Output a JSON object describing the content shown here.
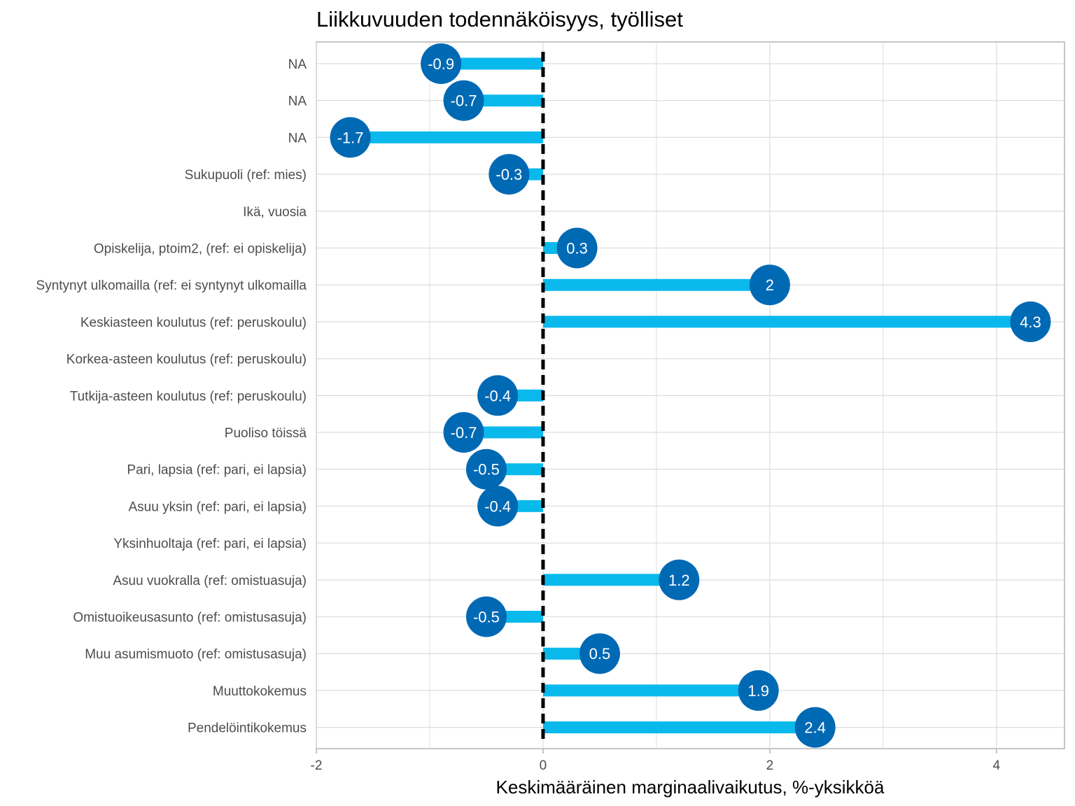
{
  "chart_data": {
    "type": "lollipop",
    "title": "Liikkuvuuden todennäköisyys, työlliset",
    "xlabel": "Keskimääräinen marginaalivaikutus, %-yksikköä",
    "ylabel": "",
    "xlim": [
      -2,
      4.6
    ],
    "xticks": [
      -2,
      0,
      2,
      4
    ],
    "xtick_labels": [
      "-2",
      "0",
      "2",
      "4"
    ],
    "reference_line": 0,
    "grid": true,
    "categories": [
      "NA",
      "NA",
      "NA",
      "Sukupuoli (ref: mies)",
      "Ikä, vuosia",
      "Opiskelija, ptoim2, (ref: ei opiskelija)",
      "Syntynyt ulkomailla (ref: ei syntynyt ulkomailla",
      "Keskiasteen koulutus (ref: peruskoulu)",
      "Korkea-asteen koulutus (ref: peruskoulu)",
      "Tutkija-asteen koulutus (ref: peruskoulu)",
      "Puoliso töissä",
      "Pari, lapsia (ref: pari, ei lapsia)",
      "Asuu yksin (ref: pari, ei lapsia)",
      "Yksinhuoltaja (ref: pari, ei lapsia)",
      "Asuu vuokralla (ref: omistuasuja)",
      "Omistuoikeusasunto (ref: omistusasuja)",
      "Muu asumismuoto (ref: omistusasuja)",
      "Muuttokokemus",
      "Pendelöintikokemus"
    ],
    "values": [
      -0.9,
      -0.7,
      -1.7,
      -0.3,
      null,
      0.3,
      2,
      4.3,
      null,
      -0.4,
      -0.7,
      -0.5,
      -0.4,
      null,
      1.2,
      -0.5,
      0.5,
      1.9,
      2.4
    ],
    "value_labels": [
      "-0.9",
      "-0.7",
      "-1.7",
      "-0.3",
      "",
      "0.3",
      "2",
      "4.3",
      "",
      "-0.4",
      "-0.7",
      "-0.5",
      "-0.4",
      "",
      "1.2",
      "-0.5",
      "0.5",
      "1.9",
      "2.4"
    ],
    "colors": {
      "stem": "#0ab9ec",
      "point": "#0069b4",
      "point_text": "#ffffff",
      "reference_line": "#000000",
      "grid": "#dedede",
      "panel_border": "#b3b3b3"
    }
  }
}
